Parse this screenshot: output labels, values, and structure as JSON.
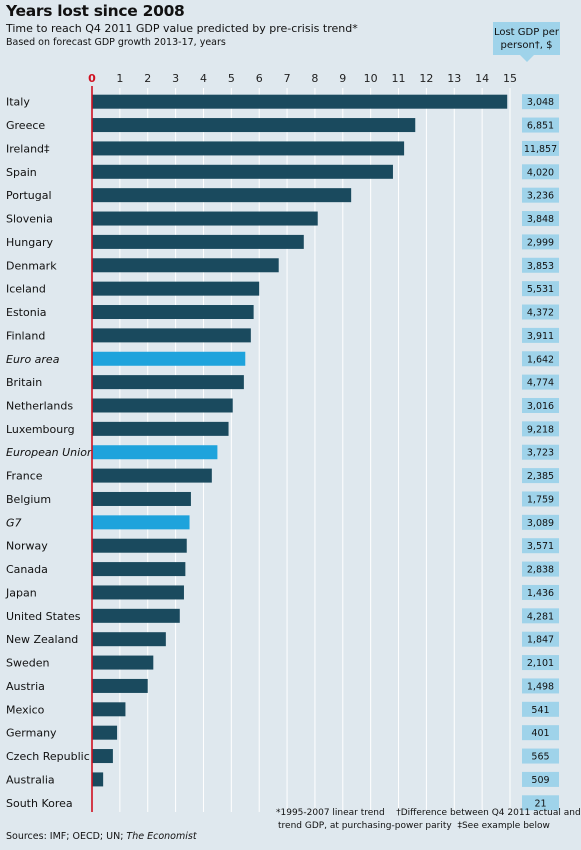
{
  "chart_data": {
    "type": "bar",
    "orientation": "horizontal",
    "title": "Years lost since 2008",
    "subtitle": "Time to reach Q4 2011 GDP value predicted by pre-crisis trend*",
    "note": "Based on forecast GDP growth 2013-17, years",
    "xlim": [
      0,
      15
    ],
    "xticks": [
      0,
      1,
      2,
      3,
      4,
      5,
      6,
      7,
      8,
      9,
      10,
      11,
      12,
      13,
      14,
      15
    ],
    "grid": true,
    "categories": [
      "Italy",
      "Greece",
      "Ireland‡",
      "Spain",
      "Portugal",
      "Slovenia",
      "Hungary",
      "Denmark",
      "Iceland",
      "Estonia",
      "Finland",
      "Euro area",
      "Britain",
      "Netherlands",
      "Luxembourg",
      "European Union",
      "France",
      "Belgium",
      "G7",
      "Norway",
      "Canada",
      "Japan",
      "United States",
      "New Zealand",
      "Sweden",
      "Austria",
      "Mexico",
      "Germany",
      "Czech Republic",
      "Australia",
      "South Korea"
    ],
    "values": [
      14.9,
      11.6,
      11.2,
      10.8,
      9.3,
      8.1,
      7.6,
      6.7,
      6.0,
      5.8,
      5.7,
      5.5,
      5.45,
      5.05,
      4.9,
      4.5,
      4.3,
      3.55,
      3.5,
      3.4,
      3.35,
      3.3,
      3.15,
      2.65,
      2.2,
      2.0,
      1.2,
      0.9,
      0.75,
      0.4,
      0.0
    ],
    "aggregates": [
      "Euro area",
      "European Union",
      "G7"
    ],
    "colors": {
      "country": "#1a4a5e",
      "aggregate": "#1ea3dc",
      "zero_line": "#d01020",
      "grid": "#ffffff",
      "value_box": "#9fd3ea"
    },
    "side_column": {
      "header": "Lost GDP per person†, $",
      "values": [
        "3,048",
        "6,851",
        "11,857",
        "4,020",
        "3,236",
        "3,848",
        "2,999",
        "3,853",
        "5,531",
        "4,372",
        "3,911",
        "1,642",
        "4,774",
        "3,016",
        "9,218",
        "3,723",
        "2,385",
        "1,759",
        "3,089",
        "3,571",
        "2,838",
        "1,436",
        "4,281",
        "1,847",
        "2,101",
        "1,498",
        "541",
        "401",
        "565",
        "509",
        "21"
      ]
    }
  },
  "callout": {
    "line1": "Lost GDP per",
    "line2": "person†, $"
  },
  "footer": {
    "sources_prefix": "Sources: IMF; OECD; UN; ",
    "sources_italic": "The Economist",
    "fn1": "*1995-2007 linear trend",
    "fn2": "†Difference between Q4 2011 actual and",
    "fn3": "trend GDP, at purchasing-power parity",
    "fn4": "‡See example below"
  }
}
